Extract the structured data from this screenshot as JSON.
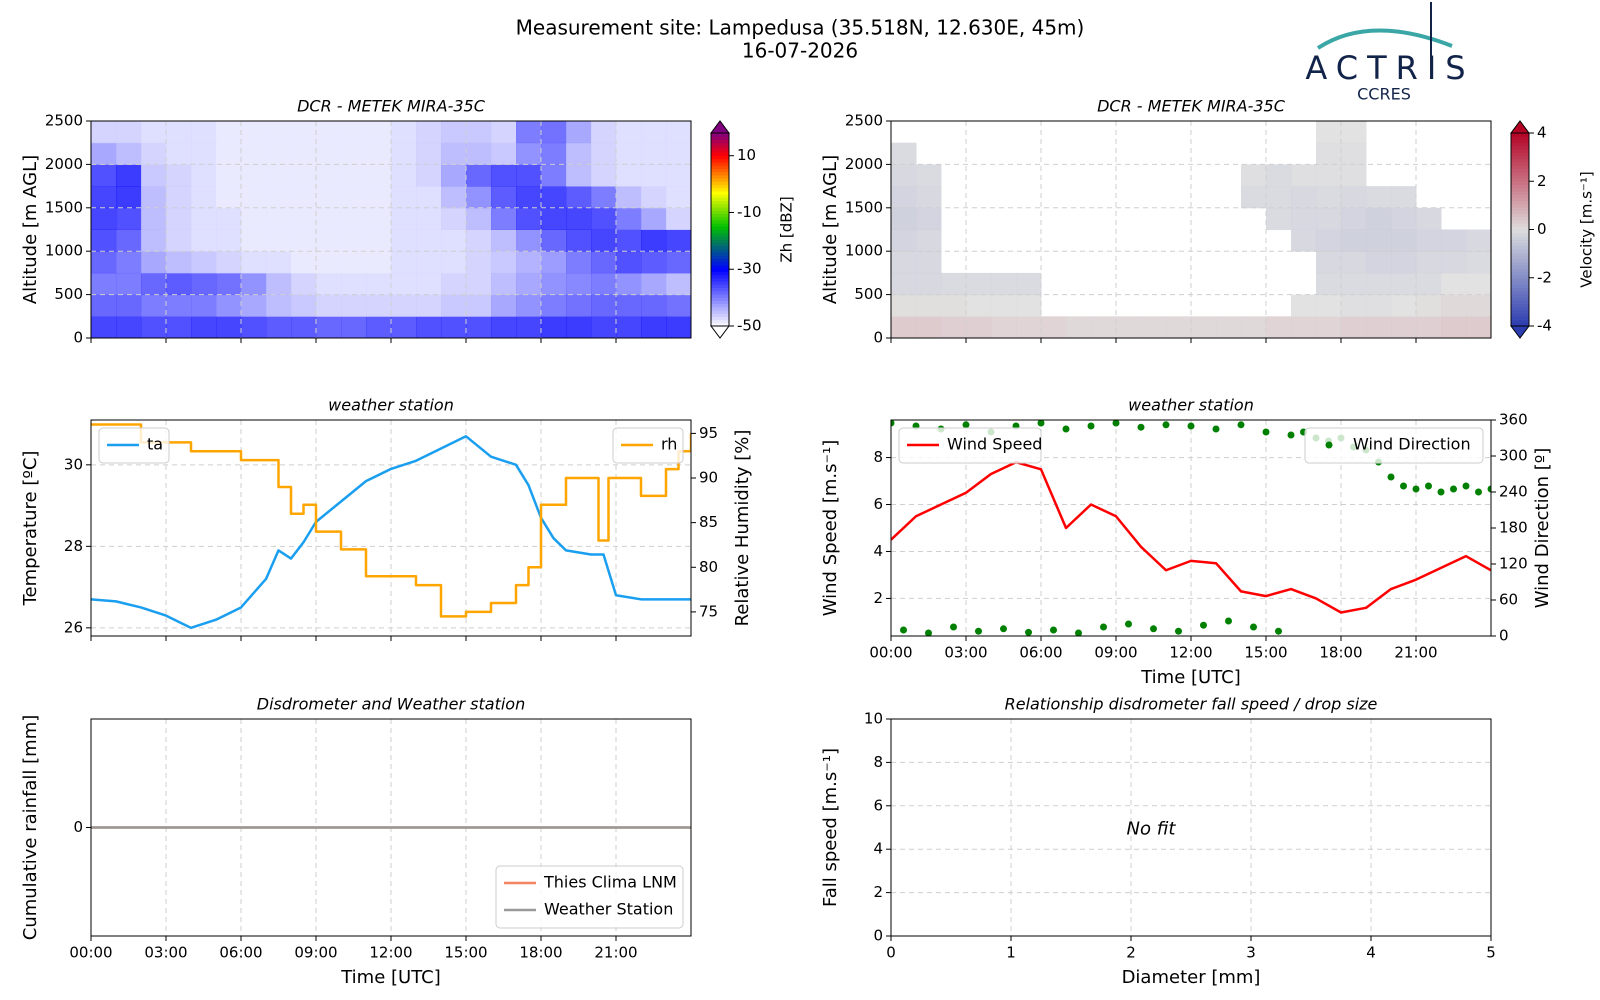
{
  "header": {
    "title": "Measurement site: Lampedusa (35.518N, 12.630E, 45m)",
    "subtitle": "16-07-2026",
    "logo": "ACTRIS",
    "logo_sub": "CCRES"
  },
  "chart_data": [
    {
      "type": "heatmap",
      "title": "DCR - METEK MIRA-35C",
      "ylabel": "Altitude [m AGL]",
      "zlabel": "Zh [dBZ]",
      "grid": true,
      "hide_xtick_labels": true,
      "xlim": [
        0,
        24
      ],
      "xticks": [
        0,
        3,
        6,
        9,
        12,
        15,
        18,
        21
      ],
      "ylim": [
        0,
        2500
      ],
      "yticks": [
        0,
        500,
        1000,
        1500,
        2000,
        2500
      ],
      "zlim": [
        -50,
        18
      ],
      "zticks": [
        -50,
        -30,
        -10,
        10
      ],
      "colorscale": [
        [
          -50,
          "#ffffff"
        ],
        [
          -30,
          "#0000ff"
        ],
        [
          -15,
          "#00c000"
        ],
        [
          -3,
          "#ffff00"
        ],
        [
          10,
          "#ff0000"
        ],
        [
          18,
          "#800080"
        ]
      ],
      "x_edges": [
        0,
        1,
        2,
        3,
        4,
        5,
        6,
        7,
        8,
        9,
        10,
        11,
        12,
        13,
        14,
        15,
        16,
        17,
        18,
        19,
        20,
        21,
        22,
        23,
        24
      ],
      "y_edges": [
        0,
        250,
        500,
        750,
        1000,
        1250,
        1500,
        1750,
        2000,
        2250,
        2500
      ],
      "z": [
        [
          -33,
          -33,
          -34,
          -34,
          -33,
          -33,
          -34,
          -35,
          -35,
          -36,
          -36,
          -35,
          -35,
          -34,
          -34,
          -34,
          -33,
          -33,
          -32,
          -32,
          -33,
          -33,
          -32,
          -32
        ],
        [
          -36,
          -36,
          -38,
          -38,
          -38,
          -40,
          -42,
          -44,
          -45,
          -46,
          -46,
          -46,
          -46,
          -46,
          -45,
          -45,
          -42,
          -40,
          -38,
          -37,
          -36,
          -36,
          -36,
          -37
        ],
        [
          -38,
          -38,
          -36,
          -35,
          -36,
          -37,
          -40,
          -44,
          -46,
          -47,
          -47,
          -47,
          -47,
          -47,
          -46,
          -46,
          -44,
          -42,
          -40,
          -39,
          -38,
          -40,
          -42,
          -44
        ],
        [
          -36,
          -38,
          -42,
          -44,
          -45,
          -46,
          -47,
          -47,
          -48,
          -48,
          -48,
          -48,
          -47,
          -47,
          -47,
          -46,
          -45,
          -43,
          -41,
          -38,
          -36,
          -34,
          -35,
          -36
        ],
        [
          -34,
          -36,
          -44,
          -46,
          -47,
          -47,
          -48,
          -48,
          -48,
          -48,
          -48,
          -48,
          -47,
          -47,
          -47,
          -46,
          -44,
          -40,
          -36,
          -34,
          -33,
          -34,
          -32,
          -33
        ],
        [
          -33,
          -34,
          -44,
          -46,
          -47,
          -47,
          -48,
          -48,
          -48,
          -48,
          -48,
          -48,
          -47,
          -47,
          -46,
          -44,
          -38,
          -34,
          -33,
          -33,
          -34,
          -38,
          -42,
          -46
        ],
        [
          -33,
          -32,
          -44,
          -46,
          -47,
          -48,
          -48,
          -48,
          -48,
          -48,
          -48,
          -48,
          -47,
          -47,
          -44,
          -40,
          -35,
          -33,
          -33,
          -35,
          -38,
          -44,
          -46,
          -47
        ],
        [
          -34,
          -32,
          -45,
          -46,
          -47,
          -48,
          -48,
          -48,
          -48,
          -48,
          -48,
          -48,
          -47,
          -46,
          -42,
          -36,
          -34,
          -34,
          -38,
          -44,
          -46,
          -47,
          -47,
          -47
        ],
        [
          -42,
          -44,
          -46,
          -47,
          -47,
          -48,
          -48,
          -48,
          -48,
          -48,
          -48,
          -48,
          -47,
          -46,
          -44,
          -44,
          -45,
          -40,
          -38,
          -44,
          -46,
          -47,
          -47,
          -47
        ],
        [
          -46,
          -46,
          -47,
          -47,
          -47,
          -48,
          -48,
          -48,
          -48,
          -48,
          -48,
          -48,
          -47,
          -46,
          -45,
          -45,
          -46,
          -38,
          -37,
          -42,
          -46,
          -47,
          -47,
          -47
        ]
      ]
    },
    {
      "type": "heatmap",
      "title": "DCR - METEK MIRA-35C",
      "ylabel": "Altitude [m AGL]",
      "zlabel": "Velocity [m.s⁻¹]",
      "grid": true,
      "hide_xtick_labels": true,
      "xlim": [
        0,
        24
      ],
      "xticks": [
        0,
        3,
        6,
        9,
        12,
        15,
        18,
        21
      ],
      "ylim": [
        0,
        2500
      ],
      "yticks": [
        0,
        500,
        1000,
        1500,
        2000,
        2500
      ],
      "zlim": [
        -4,
        4
      ],
      "zticks": [
        -4,
        -2,
        0,
        2,
        4
      ],
      "colorscale": [
        [
          -4,
          "#2b3bb0"
        ],
        [
          0,
          "#dddddd"
        ],
        [
          4,
          "#b40426"
        ]
      ],
      "x_edges": [
        0,
        1,
        2,
        3,
        4,
        5,
        6,
        7,
        8,
        9,
        10,
        11,
        12,
        13,
        14,
        15,
        16,
        17,
        18,
        19,
        20,
        21,
        22,
        23,
        24
      ],
      "y_edges": [
        0,
        250,
        500,
        750,
        1000,
        1250,
        1500,
        1750,
        2000,
        2250,
        2500
      ],
      "z": [
        [
          0.5,
          0.5,
          0.4,
          0.4,
          0.3,
          0.3,
          0.3,
          0.2,
          0.2,
          0.2,
          0.2,
          0.2,
          0.2,
          0.2,
          0.2,
          0.3,
          0.3,
          0.3,
          0.4,
          0.4,
          0.4,
          0.4,
          0.5,
          0.5
        ],
        [
          0.1,
          0.1,
          0.1,
          0,
          0,
          0,
          null,
          null,
          null,
          null,
          null,
          null,
          null,
          null,
          null,
          null,
          0,
          0,
          -0.1,
          -0.1,
          0,
          0.1,
          0.2,
          0.2
        ],
        [
          -0.3,
          -0.3,
          -0.2,
          -0.2,
          -0.2,
          -0.2,
          null,
          null,
          null,
          null,
          null,
          null,
          null,
          null,
          null,
          null,
          null,
          -0.2,
          -0.2,
          -0.2,
          -0.2,
          -0.2,
          0,
          0
        ],
        [
          -0.3,
          -0.3,
          null,
          null,
          null,
          null,
          null,
          null,
          null,
          null,
          null,
          null,
          null,
          null,
          null,
          null,
          null,
          -0.3,
          -0.3,
          -0.4,
          -0.4,
          -0.3,
          -0.3,
          -0.2
        ],
        [
          -0.4,
          -0.3,
          null,
          null,
          null,
          null,
          null,
          null,
          null,
          null,
          null,
          null,
          null,
          null,
          null,
          null,
          -0.3,
          -0.4,
          -0.5,
          -0.5,
          -0.5,
          -0.4,
          -0.4,
          -0.3
        ],
        [
          -0.5,
          -0.4,
          null,
          null,
          null,
          null,
          null,
          null,
          null,
          null,
          null,
          null,
          null,
          null,
          null,
          -0.2,
          -0.3,
          -0.3,
          -0.4,
          -0.5,
          -0.4,
          -0.3,
          null,
          null
        ],
        [
          -0.4,
          -0.3,
          null,
          null,
          null,
          null,
          null,
          null,
          null,
          null,
          null,
          null,
          null,
          null,
          -0.2,
          -0.2,
          -0.3,
          -0.2,
          -0.3,
          -0.2,
          -0.2,
          null,
          null,
          null
        ],
        [
          -0.3,
          -0.2,
          null,
          null,
          null,
          null,
          null,
          null,
          null,
          null,
          null,
          null,
          null,
          null,
          -0.1,
          -0.2,
          -0.1,
          -0.1,
          -0.1,
          null,
          null,
          null,
          null,
          null
        ],
        [
          -0.2,
          null,
          null,
          null,
          null,
          null,
          null,
          null,
          null,
          null,
          null,
          null,
          null,
          null,
          null,
          null,
          null,
          -0.1,
          -0.1,
          null,
          null,
          null,
          null,
          null
        ],
        [
          null,
          null,
          null,
          null,
          null,
          null,
          null,
          null,
          null,
          null,
          null,
          null,
          null,
          null,
          null,
          null,
          null,
          0,
          0,
          null,
          null,
          null,
          null,
          null
        ]
      ]
    },
    {
      "type": "line",
      "title": "weather station",
      "ylabel": "Temperature [ºC]",
      "y2label": "Relative Humidity [%]",
      "grid": true,
      "hide_xtick_labels": true,
      "xlim": [
        0,
        24
      ],
      "xticks": [
        0,
        3,
        6,
        9,
        12,
        15,
        18,
        21
      ],
      "ylim": [
        25.8,
        31.1
      ],
      "yticks": [
        26,
        28,
        30
      ],
      "y2lim": [
        72.3,
        96.5
      ],
      "y2ticks": [
        75,
        80,
        85,
        90,
        95
      ],
      "series": [
        {
          "name": "ta",
          "color": "#1a9ff0",
          "legend": "upper left",
          "x": [
            0,
            1,
            2,
            3,
            4,
            5,
            6,
            7,
            7.5,
            8,
            8.5,
            9,
            10,
            11,
            12,
            13,
            14,
            15,
            16,
            17,
            17.5,
            18,
            18.5,
            19,
            20,
            20.5,
            21,
            22,
            23,
            24
          ],
          "values": [
            26.7,
            26.65,
            26.5,
            26.3,
            26.0,
            26.2,
            26.5,
            27.2,
            27.9,
            27.7,
            28.1,
            28.6,
            29.1,
            29.6,
            29.9,
            30.1,
            30.4,
            30.7,
            30.2,
            30.0,
            29.5,
            28.7,
            28.2,
            27.9,
            27.8,
            27.8,
            26.8,
            26.7,
            26.7,
            26.7
          ]
        },
        {
          "name": "rh",
          "color": "#ffa500",
          "legend": "upper right",
          "axis": "y2",
          "step": true,
          "x": [
            0,
            1,
            2,
            3,
            4,
            5,
            6,
            7,
            7.5,
            8,
            8.5,
            9,
            10,
            11,
            12,
            13,
            14,
            15,
            16,
            17,
            17.5,
            18,
            19,
            20,
            20.3,
            20.7,
            21,
            22,
            23,
            23.5,
            24
          ],
          "values": [
            96,
            96,
            94,
            94,
            93,
            93,
            92,
            92,
            89,
            86,
            87,
            84,
            82,
            79,
            79,
            78,
            74.5,
            75,
            76,
            78,
            80,
            87,
            90,
            90,
            83,
            90,
            90,
            88,
            91,
            93,
            95
          ]
        }
      ]
    },
    {
      "type": "line",
      "title": "weather station",
      "ylabel": "Wind Speed [m.s⁻¹]",
      "y2label": "Wind Direction [º]",
      "xlabel": "Time [UTC]",
      "grid": true,
      "xlim": [
        0,
        24
      ],
      "xticks": [
        {
          "value": 0,
          "label": "00:00"
        },
        {
          "value": 3,
          "label": "03:00"
        },
        {
          "value": 6,
          "label": "06:00"
        },
        {
          "value": 9,
          "label": "09:00"
        },
        {
          "value": 12,
          "label": "12:00"
        },
        {
          "value": 15,
          "label": "15:00"
        },
        {
          "value": 18,
          "label": "18:00"
        },
        {
          "value": 21,
          "label": "21:00"
        }
      ],
      "ylim": [
        0.4,
        9.6
      ],
      "yticks": [
        2,
        4,
        6,
        8
      ],
      "y2lim": [
        0,
        360
      ],
      "y2ticks": [
        0,
        60,
        120,
        180,
        240,
        300,
        360
      ],
      "series": [
        {
          "name": "Wind Speed",
          "color": "#ff0000",
          "legend": "upper left",
          "x": [
            0,
            1,
            2,
            3,
            4,
            5,
            6,
            7,
            8,
            9,
            10,
            11,
            12,
            13,
            14,
            15,
            16,
            17,
            18,
            19,
            20,
            21,
            22,
            23,
            24
          ],
          "values": [
            4.5,
            5.5,
            6,
            6.5,
            7.3,
            7.8,
            7.5,
            5.0,
            6.0,
            5.5,
            4.2,
            3.2,
            3.6,
            3.5,
            2.3,
            2.1,
            2.4,
            2.0,
            1.4,
            1.6,
            2.4,
            2.8,
            3.3,
            3.8,
            3.2
          ]
        },
        {
          "name": "Wind Direction",
          "color": "#008000",
          "legend": "upper right",
          "axis": "y2",
          "type": "scatter",
          "x": [
            0,
            0.5,
            1,
            1.5,
            2,
            2.5,
            3,
            3.5,
            4,
            4.5,
            5,
            5.5,
            6,
            6.5,
            7,
            7.5,
            8,
            8.5,
            9,
            9.5,
            10,
            10.5,
            11,
            11.5,
            12,
            12.5,
            13,
            13.5,
            14,
            14.5,
            15,
            15.5,
            16,
            16.5,
            17,
            17.5,
            18,
            18.5,
            19,
            19.5,
            20,
            20.5,
            21,
            21.5,
            22,
            22.5,
            23,
            23.5,
            24
          ],
          "values": [
            355,
            10,
            350,
            5,
            345,
            15,
            352,
            8,
            340,
            12,
            350,
            6,
            355,
            10,
            345,
            5,
            350,
            15,
            355,
            20,
            348,
            12,
            352,
            8,
            350,
            18,
            345,
            25,
            352,
            15,
            340,
            8,
            335,
            340,
            330,
            325,
            330,
            315,
            310,
            290,
            265,
            250,
            245,
            250,
            240,
            245,
            250,
            240,
            245
          ]
        }
      ]
    },
    {
      "type": "line",
      "title": "Disdrometer and Weather station",
      "ylabel": "Cumulative rainfall [mm]",
      "xlabel": "Time [UTC]",
      "grid": true,
      "legend": "lower right",
      "xlim": [
        0,
        24
      ],
      "xticks": [
        {
          "value": 0,
          "label": "00:00"
        },
        {
          "value": 3,
          "label": "03:00"
        },
        {
          "value": 6,
          "label": "06:00"
        },
        {
          "value": 9,
          "label": "09:00"
        },
        {
          "value": 12,
          "label": "12:00"
        },
        {
          "value": 15,
          "label": "15:00"
        },
        {
          "value": 18,
          "label": "18:00"
        },
        {
          "value": 21,
          "label": "21:00"
        }
      ],
      "ylim": [
        -1,
        1
      ],
      "yticks": [
        0
      ],
      "series": [
        {
          "name": "Thies Clima LNM",
          "color": "#f4845f",
          "x": [
            0,
            24
          ],
          "values": [
            0,
            0
          ]
        },
        {
          "name": "Weather Station",
          "color": "#999999",
          "x": [
            0,
            24
          ],
          "values": [
            0,
            0
          ]
        }
      ]
    },
    {
      "type": "scatter",
      "title": "Relationship disdrometer fall speed / drop size",
      "ylabel": "Fall speed [m.s⁻¹]",
      "xlabel": "Diameter [mm]",
      "annotation": "No fit",
      "grid": true,
      "xlim": [
        0,
        5
      ],
      "xticks": [
        0,
        1,
        2,
        3,
        4,
        5
      ],
      "ylim": [
        0,
        10
      ],
      "yticks": [
        0,
        2,
        4,
        6,
        8,
        10
      ],
      "series": []
    }
  ]
}
